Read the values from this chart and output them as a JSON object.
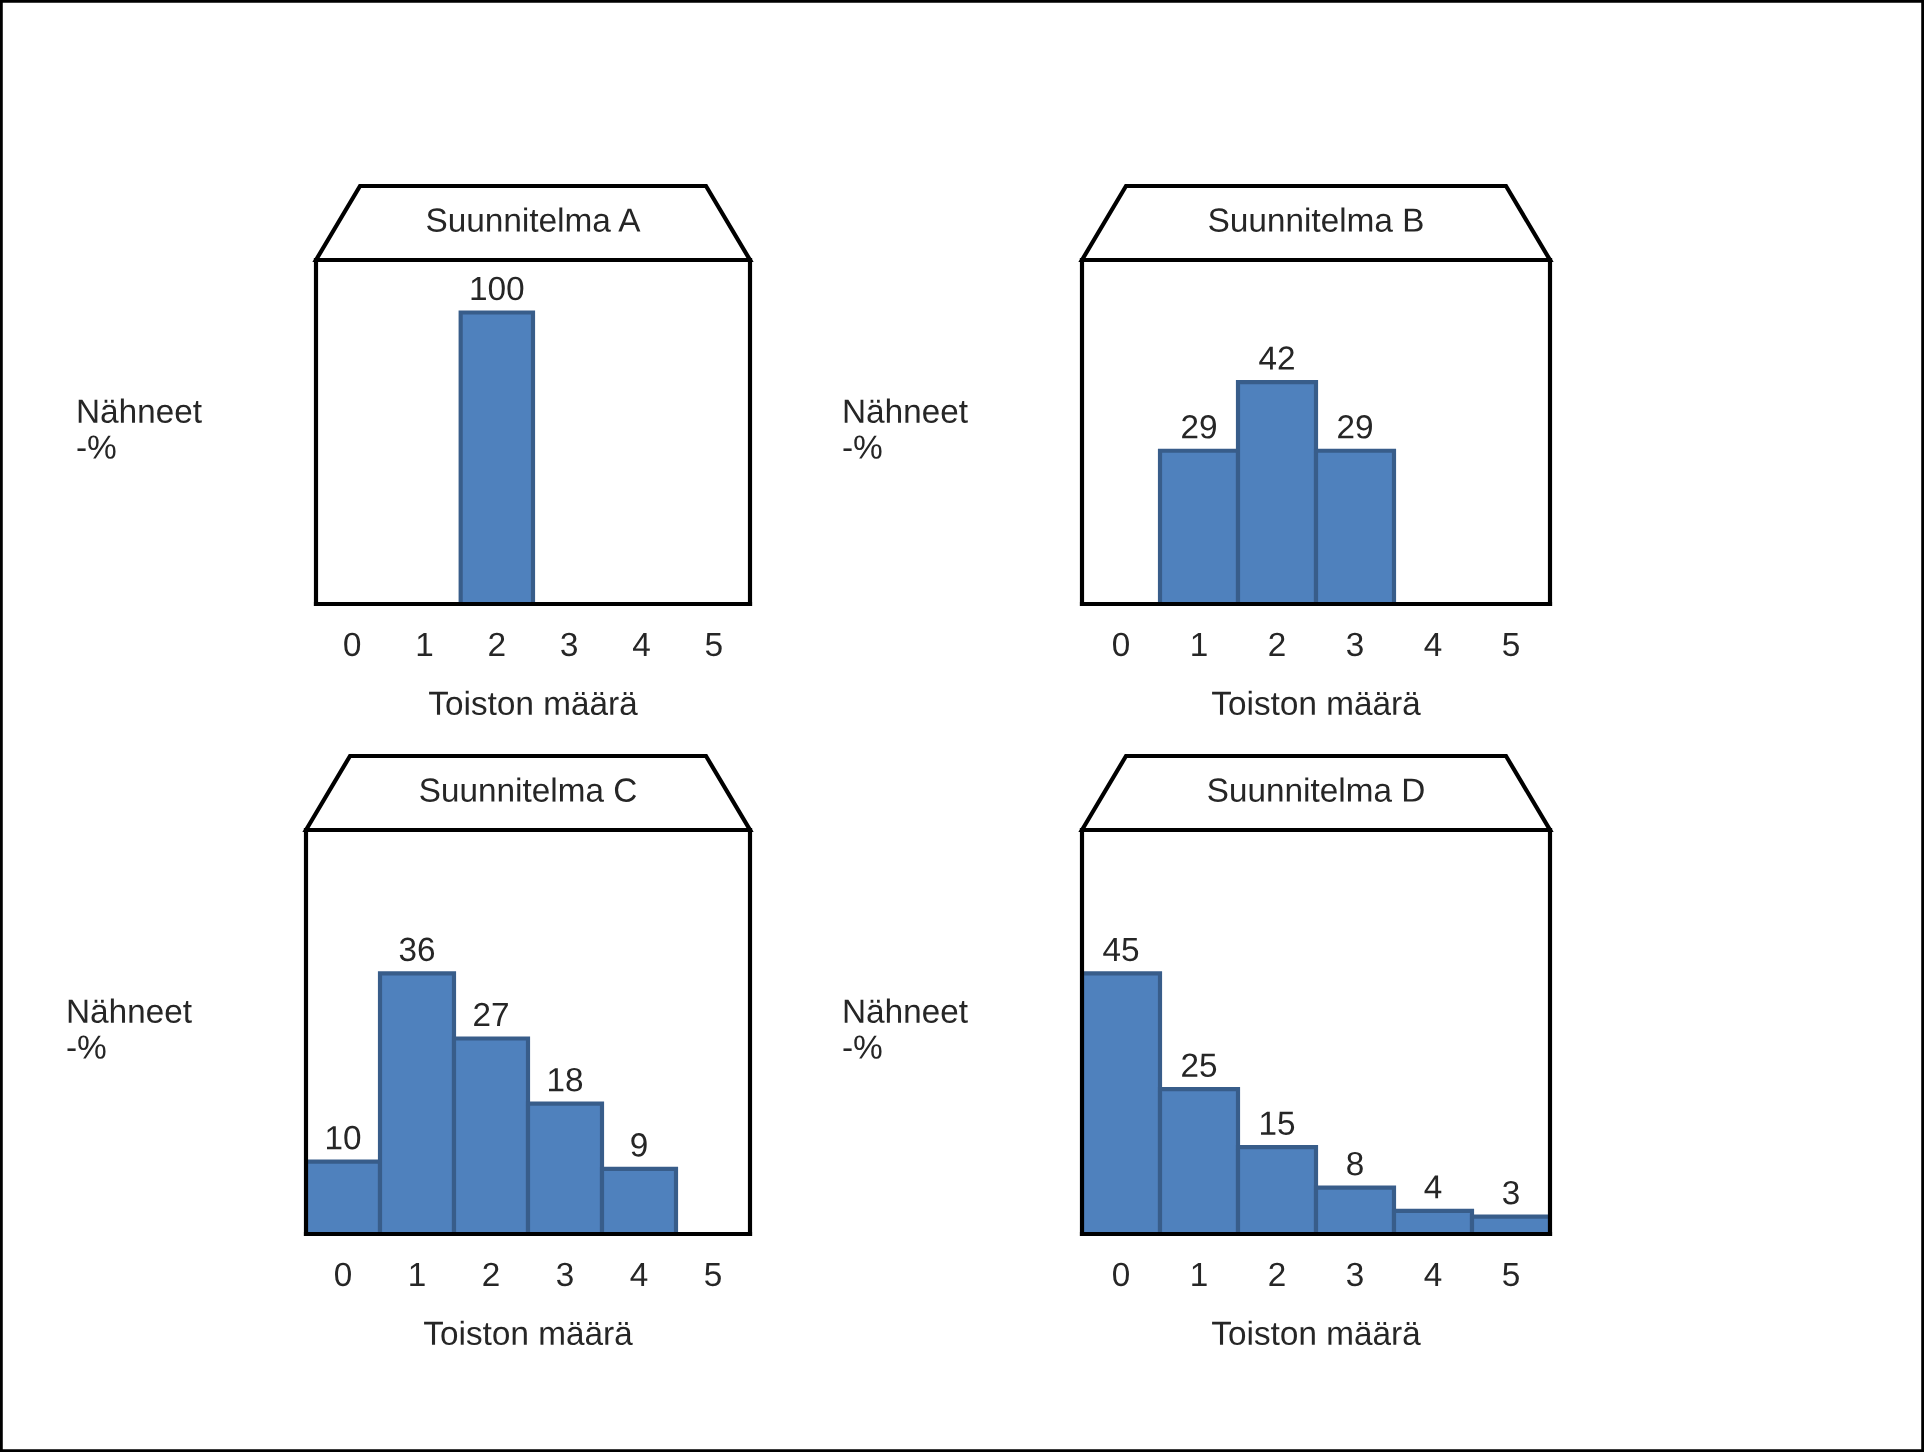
{
  "chart_data": [
    {
      "type": "bar",
      "title": "Suunnitelma A",
      "xlabel": "Toiston määrä",
      "ylabel": "Nähneet\n-%",
      "categories": [
        "0",
        "1",
        "2",
        "3",
        "4",
        "5"
      ],
      "values": [
        null,
        null,
        100,
        null,
        null,
        null
      ],
      "color": "#4f81bd",
      "data_labels": true,
      "grid": false,
      "legend": false
    },
    {
      "type": "bar",
      "title": "Suunnitelma B",
      "xlabel": "Toiston määrä",
      "ylabel": "Nähneet\n-%",
      "categories": [
        "0",
        "1",
        "2",
        "3",
        "4",
        "5"
      ],
      "values": [
        null,
        29,
        42,
        29,
        null,
        null
      ],
      "color": "#4f81bd",
      "data_labels": true,
      "grid": false,
      "legend": false
    },
    {
      "type": "bar",
      "title": "Suunnitelma C",
      "xlabel": "Toiston määrä",
      "ylabel": "Nähneet\n-%",
      "categories": [
        "0",
        "1",
        "2",
        "3",
        "4",
        "5"
      ],
      "values": [
        10,
        36,
        27,
        18,
        9,
        null
      ],
      "color": "#4f81bd",
      "data_labels": true,
      "grid": false,
      "legend": false
    },
    {
      "type": "bar",
      "title": "Suunnitelma D",
      "xlabel": "Toiston määrä",
      "ylabel": "Nähneet\n-%",
      "categories": [
        "0",
        "1",
        "2",
        "3",
        "4",
        "5"
      ],
      "values": [
        45,
        25,
        15,
        8,
        4,
        3
      ],
      "color": "#4f81bd",
      "data_labels": true,
      "grid": false,
      "legend": false
    }
  ]
}
